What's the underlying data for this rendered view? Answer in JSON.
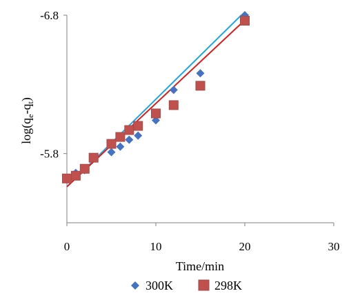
{
  "chart_data": {
    "type": "scatter",
    "xlabel": "Time/min",
    "ylabel": "log(qe-qt)",
    "ylabel_main": "log(q",
    "ylabel_sub1": "e",
    "ylabel_mid": "-q",
    "ylabel_sub2": "t",
    "ylabel_end": ")",
    "xlim": [
      0,
      30
    ],
    "ylim": [
      -5.3,
      -6.8
    ],
    "x_ticks": [
      "0",
      "10",
      "20",
      "30"
    ],
    "y_tick_labels": [
      {
        "value": -6.8,
        "label": "-6.8"
      },
      {
        "value": -5.8,
        "label": "-5.8"
      }
    ],
    "grid": false,
    "legend_position": "bottom",
    "series": [
      {
        "name": "300K",
        "marker": "diamond",
        "color": "#4472c4",
        "fit_color": "#1ea7e8",
        "points": [
          {
            "x": 0,
            "y": -5.61
          },
          {
            "x": 1,
            "y": -5.66
          },
          {
            "x": 2,
            "y": -5.68
          },
          {
            "x": 5,
            "y": -5.81
          },
          {
            "x": 6,
            "y": -5.85
          },
          {
            "x": 7,
            "y": -5.9
          },
          {
            "x": 8,
            "y": -5.93
          },
          {
            "x": 10,
            "y": -6.04
          },
          {
            "x": 12,
            "y": -6.26
          },
          {
            "x": 15,
            "y": -6.38
          },
          {
            "x": 20,
            "y": -6.8
          }
        ],
        "fit": {
          "x0": 0,
          "y0": -5.56,
          "x1": 19.6,
          "y1": -6.8
        }
      },
      {
        "name": "298K",
        "marker": "square",
        "color": "#c0504d",
        "fit_color": "#e01b1b",
        "points": [
          {
            "x": 0,
            "y": -5.62
          },
          {
            "x": 1,
            "y": -5.64
          },
          {
            "x": 2,
            "y": -5.69
          },
          {
            "x": 3,
            "y": -5.77
          },
          {
            "x": 5,
            "y": -5.87
          },
          {
            "x": 6,
            "y": -5.92
          },
          {
            "x": 7,
            "y": -5.97
          },
          {
            "x": 8,
            "y": -6.0
          },
          {
            "x": 10,
            "y": -6.09
          },
          {
            "x": 12,
            "y": -6.15
          },
          {
            "x": 15,
            "y": -6.29
          },
          {
            "x": 20,
            "y": -6.76
          }
        ],
        "fit": {
          "x0": 0,
          "y0": -5.56,
          "x1": 20.1,
          "y1": -6.77
        }
      }
    ]
  }
}
